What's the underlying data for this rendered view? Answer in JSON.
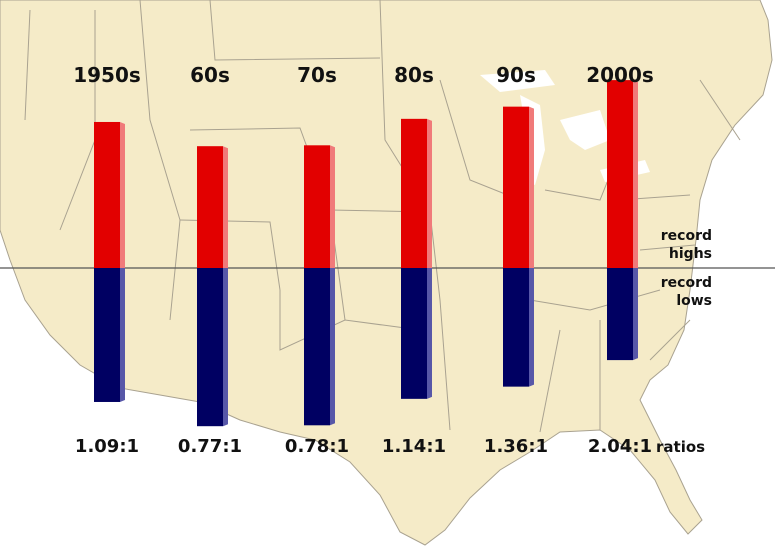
{
  "chart_data": {
    "type": "bar",
    "categories": [
      "1950s",
      "60s",
      "70s",
      "80s",
      "90s",
      "2000s"
    ],
    "series": [
      {
        "name": "record highs",
        "values": [
          1.09,
          0.77,
          0.78,
          1.14,
          1.36,
          2.04
        ]
      },
      {
        "name": "record lows",
        "values": [
          1.0,
          1.0,
          1.0,
          1.0,
          1.0,
          1.0
        ]
      }
    ],
    "ratio_labels": [
      "1.09:1",
      "0.77:1",
      "0.78:1",
      "1.14:1",
      "1.36:1",
      "2.04:1"
    ],
    "ratios_label": "ratios",
    "highs_label": [
      "record",
      "highs"
    ],
    "lows_label": [
      "record",
      "lows"
    ],
    "colors": {
      "highs": "#e20000",
      "highs_side": "#f07a7a",
      "lows": "#000062",
      "lows_side": "#5757a8",
      "map_land": "#f5ebc8",
      "map_border": "#a9a290",
      "baseline": "#555555"
    }
  }
}
